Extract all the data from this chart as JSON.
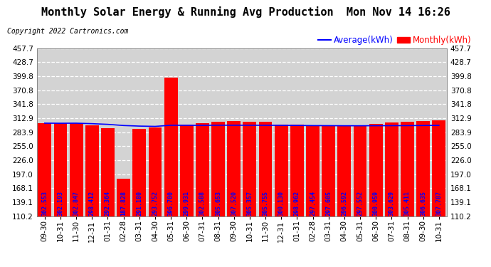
{
  "title": "Monthly Solar Energy & Running Avg Production  Mon Nov 14 16:26",
  "copyright": "Copyright 2022 Cartronics.com",
  "legend_avg": "Average(kWh)",
  "legend_monthly": "Monthly(kWh)",
  "categories": [
    "09-30",
    "10-31",
    "11-30",
    "12-31",
    "01-31",
    "02-28",
    "03-31",
    "04-30",
    "05-31",
    "06-30",
    "07-31",
    "08-31",
    "09-30",
    "10-31",
    "11-30",
    "12-31",
    "01-31",
    "02-28",
    "03-31",
    "04-30",
    "05-31",
    "06-30",
    "07-31",
    "08-31",
    "09-30",
    "10-31"
  ],
  "bar_values": [
    302.553,
    302.193,
    302.847,
    298.412,
    292.364,
    187.828,
    291.18,
    293.752,
    396.7,
    299.931,
    302.588,
    305.653,
    307.52,
    305.357,
    305.755,
    300.13,
    298.962,
    297.454,
    297.605,
    296.592,
    297.552,
    300.959,
    303.629,
    305.411,
    306.635,
    307.787
  ],
  "bar_labels": [
    "302.553",
    "302.193",
    "302.847",
    "298.412",
    "292.364",
    "187.828",
    "291.180",
    "293.752",
    "396.700",
    "299.931",
    "302.588",
    "305.653",
    "307.520",
    "305.357",
    "305.755",
    "300.130",
    "298.962",
    "297.454",
    "297.605",
    "296.592",
    "297.552",
    "300.959",
    "303.629",
    "305.411",
    "306.635",
    "307.787"
  ],
  "avg_values": [
    302.553,
    302.37,
    302.53,
    301.5,
    300.1,
    297.7,
    296.5,
    295.9,
    298.2,
    298.1,
    298.0,
    298.3,
    298.3,
    298.2,
    298.2,
    298.0,
    297.8,
    297.5,
    297.4,
    297.2,
    297.2,
    297.3,
    297.4,
    297.5,
    297.7,
    298.0
  ],
  "bar_color": "#ff0000",
  "avg_color": "#0000ff",
  "bar_label_color": "#0000ff",
  "background_color": "#ffffff",
  "grid_color": "#ffffff",
  "plot_bg_color": "#d3d3d3",
  "ylim_min": 110.2,
  "ylim_max": 457.7,
  "yticks": [
    110.2,
    139.1,
    168.1,
    197.0,
    226.0,
    255.0,
    283.9,
    312.9,
    341.8,
    370.8,
    399.8,
    428.7,
    457.7
  ],
  "title_fontsize": 11,
  "label_fontsize": 6,
  "tick_fontsize": 7.5,
  "copyright_fontsize": 7
}
